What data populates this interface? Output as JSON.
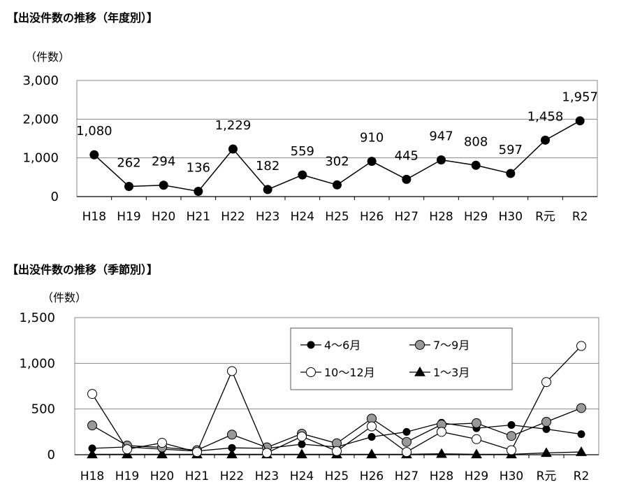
{
  "chart_data": [
    {
      "type": "line",
      "title": "【出没件数の推移（年度別）】",
      "ylabel": "（件数）",
      "xlabel": "",
      "categories": [
        "H18",
        "H19",
        "H20",
        "H21",
        "H22",
        "H23",
        "H24",
        "H25",
        "H26",
        "H27",
        "H28",
        "H29",
        "H30",
        "R元",
        "R2"
      ],
      "ylim": [
        0,
        3000
      ],
      "yticks": [
        0,
        1000,
        2000,
        3000
      ],
      "ytick_labels": [
        "0",
        "1,000",
        "2,000",
        "3,000"
      ],
      "grid": true,
      "series": [
        {
          "values": [
            1080,
            262,
            294,
            136,
            1229,
            182,
            559,
            302,
            910,
            445,
            947,
            808,
            597,
            1458,
            1957
          ],
          "data_labels": [
            "1,080",
            "262",
            "294",
            "136",
            "1,229",
            "182",
            "559",
            "302",
            "910",
            "445",
            "947",
            "808",
            "597",
            "1,458",
            "1,957"
          ],
          "color": "#000000",
          "marker": "circle-filled"
        }
      ]
    },
    {
      "type": "line",
      "title": "【出没件数の推移（季節別）】",
      "ylabel": "（件数）",
      "xlabel": "",
      "categories": [
        "H18",
        "H19",
        "H20",
        "H21",
        "H22",
        "H23",
        "H24",
        "H25",
        "H26",
        "H27",
        "H28",
        "H29",
        "H30",
        "R元",
        "R2"
      ],
      "ylim": [
        0,
        1500
      ],
      "yticks": [
        0,
        500,
        1000,
        1500
      ],
      "ytick_labels": [
        "0",
        "500",
        "1,000",
        "1,500"
      ],
      "grid": true,
      "legend": "top-right",
      "series": [
        {
          "name": "4～6月",
          "marker": "circle-black",
          "fill": "#000000",
          "values": [
            70,
            85,
            60,
            40,
            75,
            70,
            115,
            85,
            195,
            250,
            350,
            290,
            325,
            280,
            225
          ]
        },
        {
          "name": "7～9月",
          "marker": "circle-gray",
          "fill": "#999999",
          "values": [
            320,
            100,
            80,
            50,
            220,
            80,
            230,
            125,
            395,
            140,
            330,
            345,
            205,
            360,
            510
          ]
        },
        {
          "name": "10～12月",
          "marker": "circle-white",
          "fill": "#ffffff",
          "values": [
            665,
            60,
            130,
            30,
            915,
            20,
            200,
            40,
            310,
            30,
            250,
            170,
            50,
            795,
            1190
          ]
        },
        {
          "name": "1～3月",
          "marker": "triangle",
          "fill": "#000000",
          "values": [
            5,
            5,
            5,
            5,
            5,
            5,
            5,
            5,
            5,
            5,
            10,
            5,
            5,
            20,
            30
          ]
        }
      ]
    }
  ]
}
